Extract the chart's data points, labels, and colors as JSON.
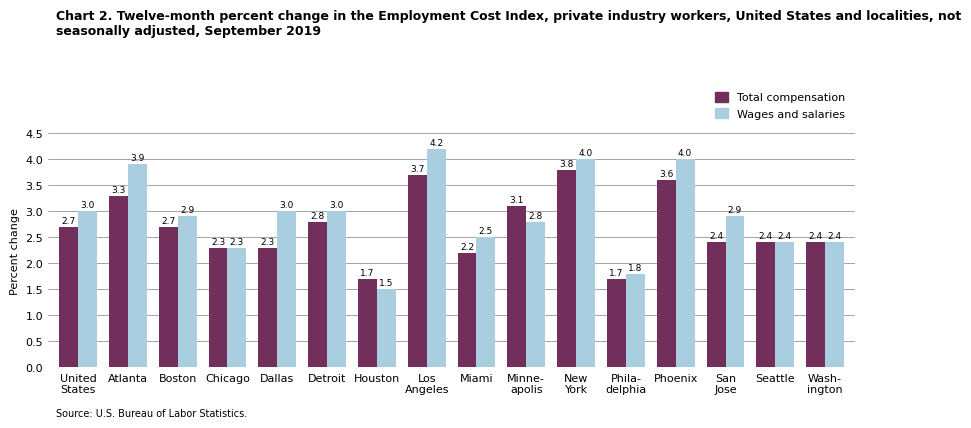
{
  "title_line1": "Chart 2. Twelve-month percent change in the Employment Cost Index, private industry workers, United States and localities, not",
  "title_line2": "seasonally adjusted, September 2019",
  "ylabel": "Percent change",
  "source": "Source: U.S. Bureau of Labor Statistics.",
  "categories": [
    "United\nStates",
    "Atlanta",
    "Boston",
    "Chicago",
    "Dallas",
    "Detroit",
    "Houston",
    "Los\nAngeles",
    "Miami",
    "Minne-\napolis",
    "New\nYork",
    "Phila-\ndelphia",
    "Phoenix",
    "San\nJose",
    "Seattle",
    "Wash-\nington"
  ],
  "total_compensation": [
    2.7,
    3.3,
    2.7,
    2.3,
    2.3,
    2.8,
    1.7,
    3.7,
    2.2,
    3.1,
    3.8,
    1.7,
    3.6,
    2.4,
    2.4,
    2.4
  ],
  "wages_and_salaries": [
    3.0,
    3.9,
    2.9,
    2.3,
    3.0,
    3.0,
    1.5,
    4.2,
    2.5,
    2.8,
    4.0,
    1.8,
    4.0,
    2.9,
    2.4,
    2.4
  ],
  "color_total": "#722F5B",
  "color_wages": "#A8CEDF",
  "ylim": [
    0,
    4.5
  ],
  "yticks": [
    0.0,
    0.5,
    1.0,
    1.5,
    2.0,
    2.5,
    3.0,
    3.5,
    4.0,
    4.5
  ],
  "legend_total": "Total compensation",
  "legend_wages": "Wages and salaries",
  "bar_width": 0.38,
  "title_fontsize": 9,
  "axis_label_fontsize": 8,
  "tick_fontsize": 8,
  "value_fontsize": 6.5,
  "legend_fontsize": 8
}
